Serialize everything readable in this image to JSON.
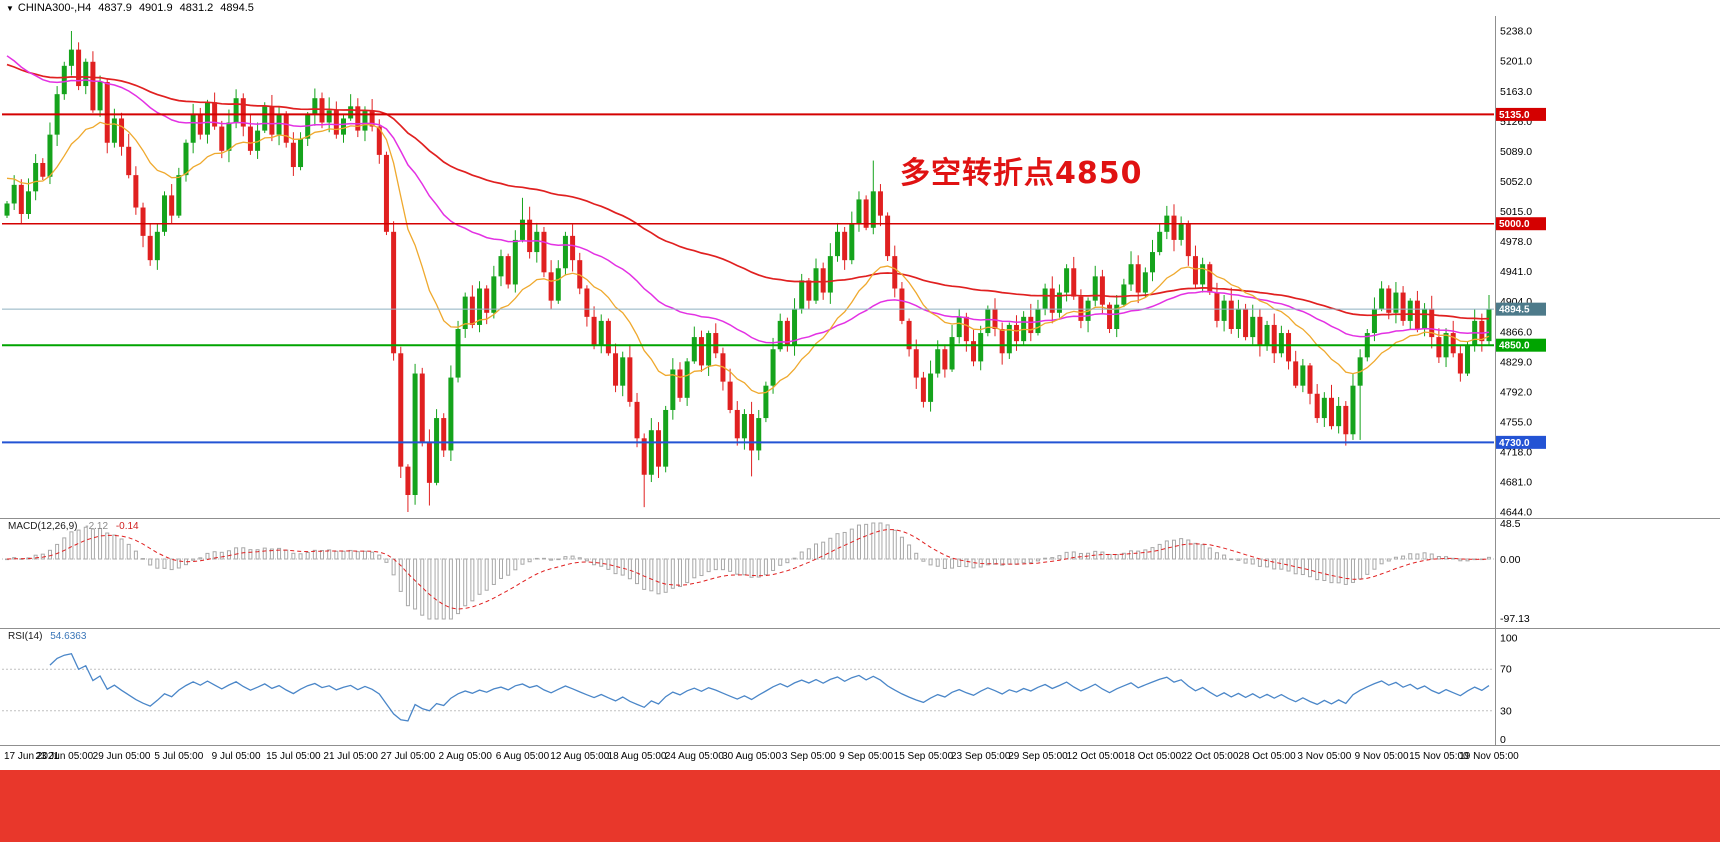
{
  "topbar": {
    "marker": "▼",
    "symbol_tf": "CHINA300-,H4",
    "open": "4837.9",
    "high": "4901.9",
    "low": "4831.2",
    "close": "4894.5"
  },
  "banner": {
    "color": "#e8372b"
  },
  "chart_data": {
    "type": "candlestick",
    "title": "CHINA300- H4 with MACD and RSI",
    "legend_position": "none",
    "grid": false,
    "main": {
      "type": "candlestick",
      "ylim": [
        4644.0,
        5238.0
      ],
      "y_ticks": [
        "5238.0",
        "5201.0",
        "5163.0",
        "5126.0",
        "5089.0",
        "5052.0",
        "5015.0",
        "4978.0",
        "4941.0",
        "4904.0",
        "4866.0",
        "4829.0",
        "4792.0",
        "4755.0",
        "4718.0",
        "4681.0",
        "4644.0"
      ],
      "x_labels": [
        "17 Jun 2021",
        "23 Jun 05:00",
        "29 Jun 05:00",
        "5 Jul 05:00",
        "9 Jul 05:00",
        "15 Jul 05:00",
        "21 Jul 05:00",
        "27 Jul 05:00",
        "2 Aug 05:00",
        "6 Aug 05:00",
        "12 Aug 05:00",
        "18 Aug 05:00",
        "24 Aug 05:00",
        "30 Aug 05:00",
        "3 Sep 05:00",
        "9 Sep 05:00",
        "15 Sep 05:00",
        "23 Sep 05:00",
        "29 Sep 05:00",
        "12 Oct 05:00",
        "18 Oct 05:00",
        "22 Oct 05:00",
        "28 Oct 05:00",
        "3 Nov 05:00",
        "9 Nov 05:00",
        "15 Nov 05:00",
        "19 Nov 05:00"
      ],
      "open0": 5010,
      "closes": [
        5025,
        5048,
        5012,
        5040,
        5075,
        5058,
        5110,
        5160,
        5195,
        5215,
        5170,
        5200,
        5140,
        5175,
        5100,
        5130,
        5095,
        5060,
        5020,
        4985,
        4955,
        4990,
        5035,
        5010,
        5060,
        5100,
        5135,
        5110,
        5150,
        5120,
        5090,
        5125,
        5155,
        5120,
        5090,
        5115,
        5145,
        5110,
        5135,
        5100,
        5070,
        5105,
        5135,
        5155,
        5125,
        5140,
        5110,
        5130,
        5145,
        5115,
        5140,
        5120,
        5085,
        4990,
        4840,
        4700,
        4665,
        4815,
        4730,
        4680,
        4760,
        4720,
        4810,
        4870,
        4910,
        4875,
        4920,
        4890,
        4935,
        4960,
        4925,
        4980,
        5005,
        4965,
        4990,
        4940,
        4905,
        4945,
        4985,
        4955,
        4920,
        4885,
        4850,
        4880,
        4840,
        4800,
        4835,
        4780,
        4735,
        4690,
        4745,
        4700,
        4770,
        4820,
        4785,
        4830,
        4860,
        4825,
        4865,
        4840,
        4805,
        4770,
        4735,
        4765,
        4720,
        4760,
        4800,
        4845,
        4880,
        4850,
        4895,
        4930,
        4905,
        4945,
        4915,
        4960,
        4990,
        4955,
        5000,
        5030,
        4995,
        5040,
        5010,
        4960,
        4920,
        4880,
        4845,
        4810,
        4780,
        4815,
        4845,
        4820,
        4860,
        4885,
        4855,
        4830,
        4865,
        4895,
        4870,
        4840,
        4875,
        4855,
        4885,
        4865,
        4895,
        4920,
        4890,
        4915,
        4945,
        4910,
        4880,
        4905,
        4935,
        4900,
        4870,
        4900,
        4925,
        4950,
        4915,
        4940,
        4965,
        4990,
        5010,
        4980,
        5000,
        4960,
        4925,
        4950,
        4915,
        4880,
        4905,
        4870,
        4895,
        4860,
        4885,
        4850,
        4875,
        4840,
        4865,
        4830,
        4800,
        4825,
        4790,
        4760,
        4785,
        4750,
        4775,
        4740,
        4800,
        4835,
        4865,
        4895,
        4920,
        4890,
        4915,
        4880,
        4905,
        4870,
        4895,
        4860,
        4835,
        4865,
        4840,
        4815,
        4850,
        4880,
        4855,
        4894.5
      ],
      "spikes": [
        {
          "i": 9,
          "high": 5238
        },
        {
          "i": 56,
          "low": 4644
        },
        {
          "i": 59,
          "low": 4652
        },
        {
          "i": 72,
          "high": 5032
        },
        {
          "i": 89,
          "low": 4650
        },
        {
          "i": 104,
          "low": 4688
        },
        {
          "i": 121,
          "high": 5078
        },
        {
          "i": 162,
          "high": 5022
        },
        {
          "i": 189,
          "low": 4733
        },
        {
          "i": 207,
          "high": 4912
        }
      ],
      "candle_colors": {
        "up": "#15a31c",
        "down": "#e02020"
      },
      "levels": [
        {
          "price": 5135.0,
          "label": "5135.0",
          "color": "#d40000",
          "width": 2
        },
        {
          "price": 5000.0,
          "label": "5000.0",
          "color": "#d40000",
          "width": 1.5
        },
        {
          "price": 4850.0,
          "label": "4850.0",
          "color": "#00a400",
          "width": 2
        },
        {
          "price": 4730.0,
          "label": "4730.0",
          "color": "#2353d4",
          "width": 2
        }
      ],
      "bid": {
        "price": 4894.5,
        "label": "4894.5",
        "line_color": "#8fb0c0",
        "tag_color": "#4d7a8a"
      },
      "mas": [
        {
          "name": "ma-slow-red",
          "color": "#e02020",
          "alpha": 0.02,
          "seed": 5200,
          "width": 1.7
        },
        {
          "name": "ma-mid-magenta",
          "color": "#e331e3",
          "alpha": 0.04,
          "seed": 5215,
          "width": 1.5
        },
        {
          "name": "ma-fast-orange",
          "color": "#efa92e",
          "alpha": 0.11,
          "seed": 5060,
          "width": 1.3
        }
      ],
      "annotation": {
        "text": "多空转折点4850",
        "color": "#e01212"
      }
    },
    "macd": {
      "type": "bar+line",
      "label": "MACD(12,26,9)",
      "value_main": "-2.12",
      "value_signal": "-0.14",
      "fast": 12,
      "slow": 26,
      "signal": 9,
      "axis_top": "48.5",
      "axis_zero": "0.00",
      "axis_bottom": "-97.13",
      "hist_color": "#a8a8a8",
      "signal_color": "#e02020"
    },
    "rsi": {
      "type": "line",
      "label": "RSI(14)",
      "value": "54.6363",
      "period": 14,
      "axis_labels": [
        "100",
        "70",
        "30",
        "0"
      ],
      "guide_levels": [
        70,
        30
      ],
      "line_color": "#4a86c8"
    }
  }
}
